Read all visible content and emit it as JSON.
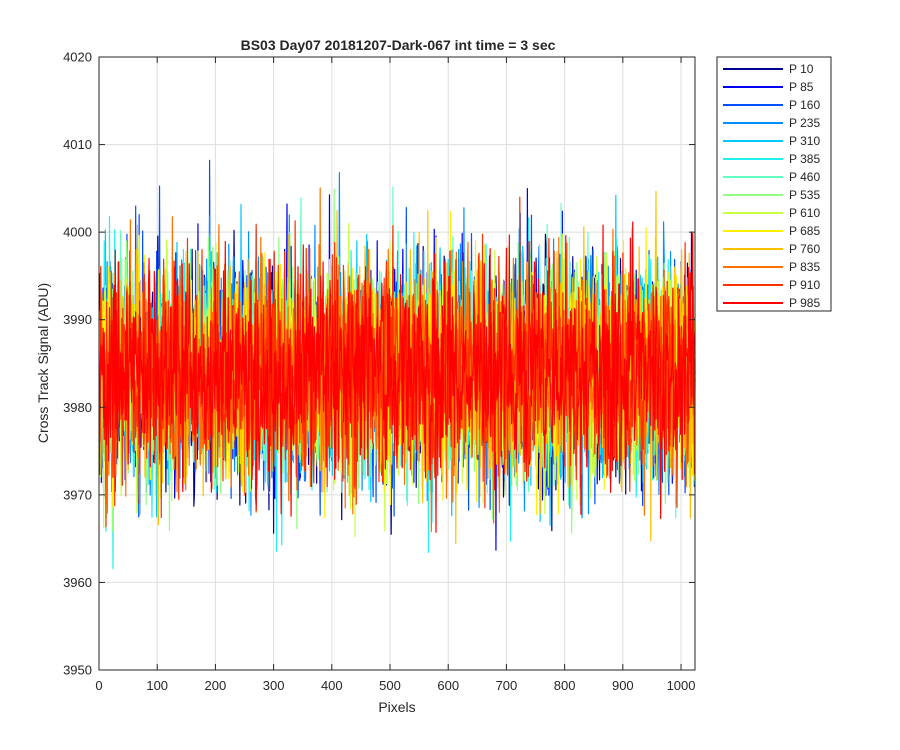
{
  "chart_data": {
    "type": "line",
    "title": "BS03 Day07 20181207-Dark-067 int time = 3 sec",
    "xlabel": "Pixels",
    "ylabel": "Cross Track Signal (ADU)",
    "xlim": [
      0,
      1024
    ],
    "ylim": [
      3950,
      4020
    ],
    "grid": true,
    "legend_position": "outside-top-right",
    "x_ticks": [
      "0",
      "100",
      "200",
      "300",
      "400",
      "500",
      "600",
      "700",
      "800",
      "900",
      "1000"
    ],
    "y_ticks": [
      "3950",
      "3960",
      "3970",
      "3980",
      "3990",
      "4000",
      "4010",
      "4020"
    ],
    "x_count": 1024,
    "series": [
      {
        "name": "P 10",
        "color": "#00008F",
        "mean": 3984,
        "sigma": 6.0
      },
      {
        "name": "P 85",
        "color": "#0000F0",
        "mean": 3984,
        "sigma": 6.0
      },
      {
        "name": "P 160",
        "color": "#0050FF",
        "mean": 3984,
        "sigma": 6.0
      },
      {
        "name": "P 235",
        "color": "#0090FF",
        "mean": 3984,
        "sigma": 6.0
      },
      {
        "name": "P 310",
        "color": "#00C8FF",
        "mean": 3984,
        "sigma": 6.0
      },
      {
        "name": "P 385",
        "color": "#20F0F0",
        "mean": 3984,
        "sigma": 6.0
      },
      {
        "name": "P 460",
        "color": "#60FFC0",
        "mean": 3984,
        "sigma": 6.0
      },
      {
        "name": "P 535",
        "color": "#90FF80",
        "mean": 3984,
        "sigma": 6.0
      },
      {
        "name": "P 610",
        "color": "#C8FF40",
        "mean": 3984,
        "sigma": 6.0
      },
      {
        "name": "P 685",
        "color": "#FFF000",
        "mean": 3984,
        "sigma": 6.0
      },
      {
        "name": "P 760",
        "color": "#FFC000",
        "mean": 3984,
        "sigma": 6.0
      },
      {
        "name": "P 835",
        "color": "#FF7000",
        "mean": 3984,
        "sigma": 6.0
      },
      {
        "name": "P 910",
        "color": "#FF3000",
        "mean": 3984,
        "sigma": 6.0
      },
      {
        "name": "P 985",
        "color": "#FF0000",
        "mean": 3984,
        "sigma": 6.0
      }
    ]
  }
}
